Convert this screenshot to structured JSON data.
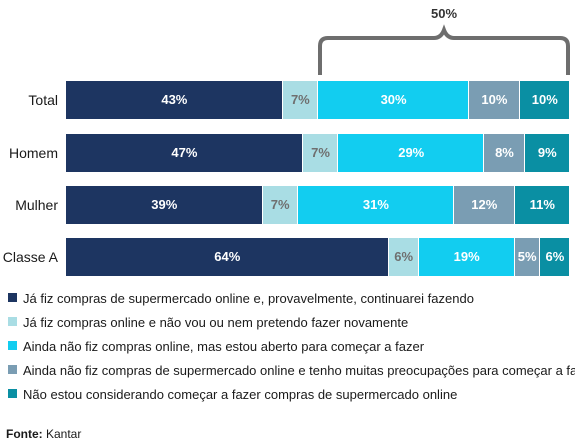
{
  "chart_data": {
    "type": "bar",
    "orientation": "horizontal",
    "stacked": true,
    "categories": [
      "Total",
      "Homem",
      "Mulher",
      "Classe A"
    ],
    "series": [
      {
        "name": "Já fiz compras de supermercado online e, provavelmente, continuarei fazendo",
        "color": "#1d3561",
        "label_color": "#ffffff",
        "values": [
          43,
          47,
          39,
          64
        ]
      },
      {
        "name": "Já fiz compras online e não vou ou nem pretendo fazer novamente",
        "color": "#a9dde4",
        "label_color": "#6f6f6f",
        "values": [
          7,
          7,
          7,
          6
        ]
      },
      {
        "name": "Ainda não fiz compras online, mas estou aberto para começar a fazer",
        "color": "#12cdf0",
        "label_color": "#ffffff",
        "values": [
          30,
          29,
          31,
          19
        ]
      },
      {
        "name": "Ainda não fiz compras de supermercado online e tenho muitas preocupações para começar a fazer",
        "color": "#7a9db3",
        "label_color": "#ffffff",
        "values": [
          10,
          8,
          12,
          5
        ]
      },
      {
        "name": "Não estou considerando começar a fazer compras de supermercado online",
        "color": "#0a8fa3",
        "label_color": "#ffffff",
        "values": [
          10,
          9,
          11,
          6
        ]
      }
    ],
    "value_suffix": "%",
    "bracket": {
      "label": "50%",
      "category": "Total",
      "series_range": [
        2,
        4
      ]
    },
    "legend_position": "bottom-left",
    "grid": false,
    "xlim": [
      0,
      100
    ]
  },
  "source": {
    "label": "Fonte:",
    "text": "Kantar"
  }
}
